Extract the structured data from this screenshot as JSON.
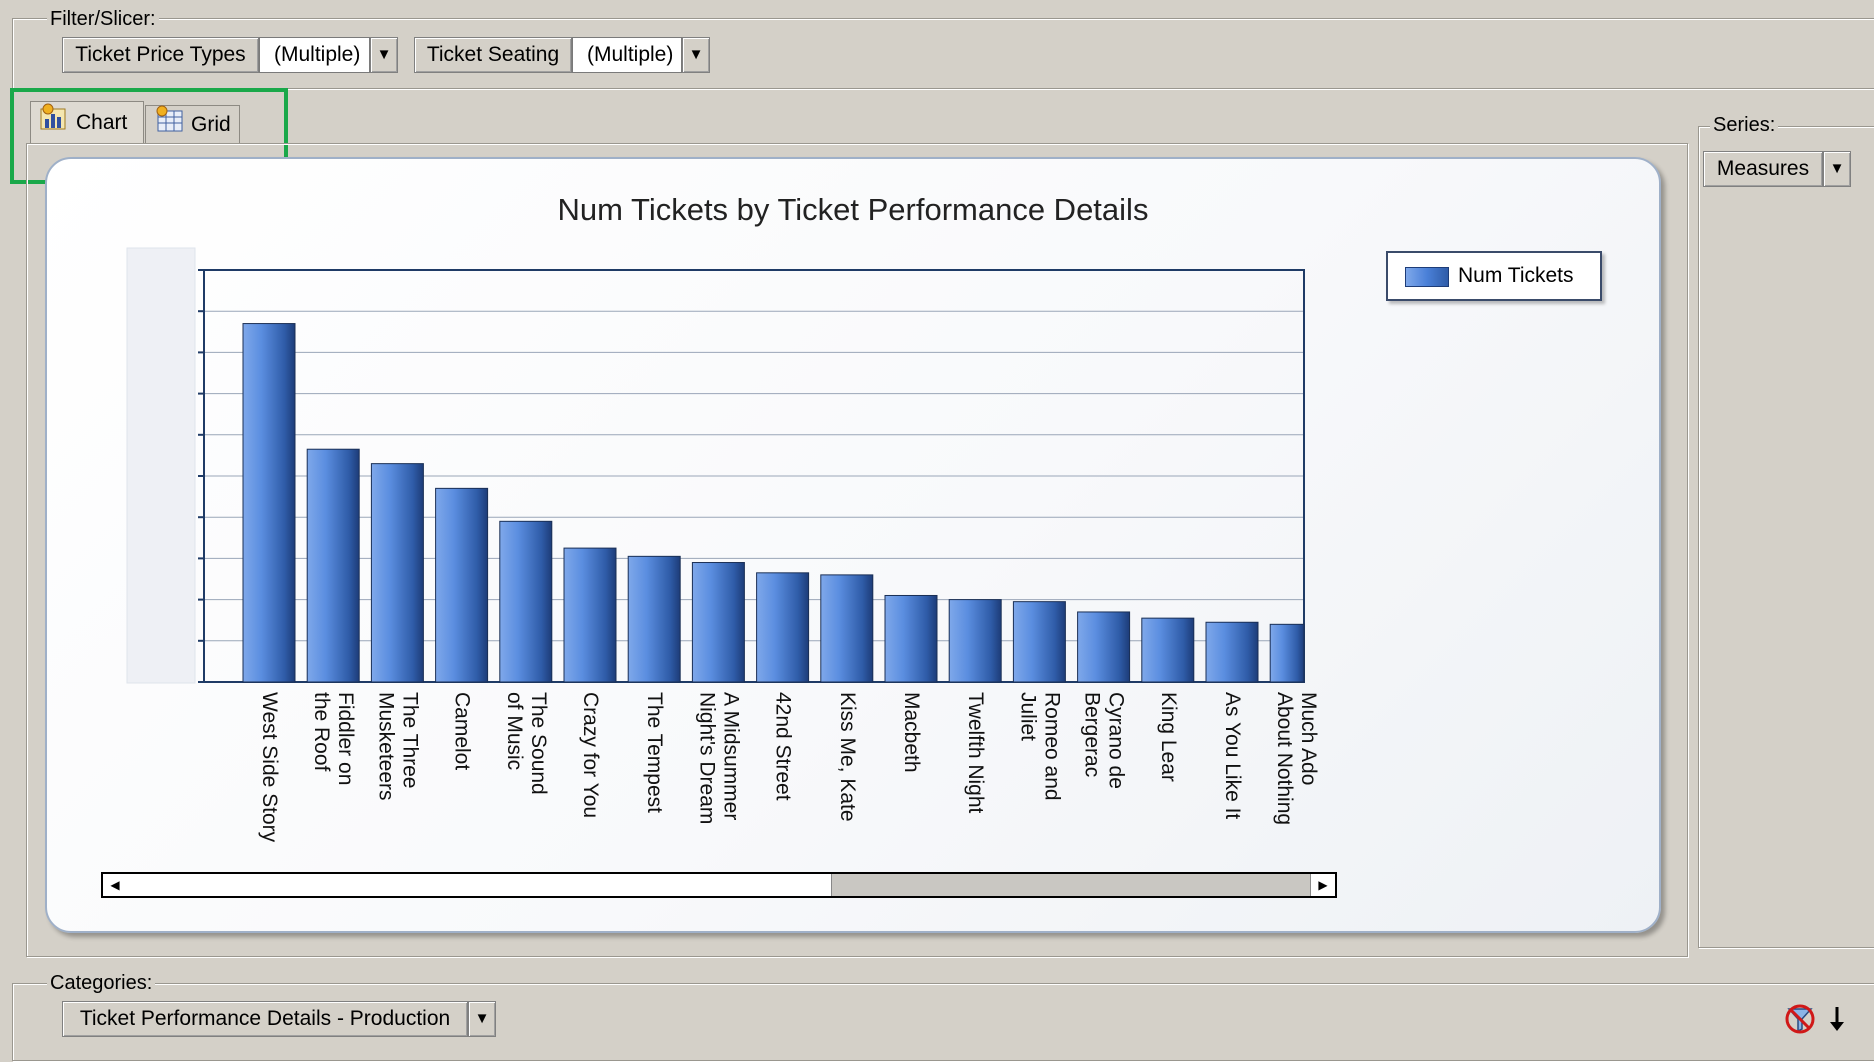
{
  "filter": {
    "label": "Filter/Slicer:",
    "items": [
      {
        "name": "Ticket Price Types",
        "value": "(Multiple)"
      },
      {
        "name": "Ticket Seating",
        "value": "(Multiple)"
      }
    ]
  },
  "tabs": [
    {
      "label": "Chart",
      "icon": "chart-icon",
      "active": true
    },
    {
      "label": "Grid",
      "icon": "grid-icon",
      "active": false
    }
  ],
  "series": {
    "label": "Series:",
    "button": "Measures"
  },
  "categories": {
    "label": "Categories:",
    "button": "Ticket Performance Details - Production"
  },
  "icons": {
    "dropdown": "dropdown-arrow-icon",
    "filter_off": "filter-off-icon",
    "sort": "sort-down-arrow-icon",
    "scroll_left": "scroll-left-icon",
    "scroll_right": "scroll-right-icon"
  },
  "colors": {
    "bar": "#4a80d8",
    "highlight": "#1aa84a",
    "card_border": "#9fb0c8"
  },
  "chart_data": {
    "type": "bar",
    "title": "Num Tickets by Ticket Performance Details",
    "legend": {
      "entry": "Num Tickets",
      "position": "right"
    },
    "grid": true,
    "ylim": [
      0,
      100
    ],
    "series": [
      {
        "name": "Num Tickets"
      }
    ],
    "bars": [
      {
        "l1": "West Side Story",
        "l2": "",
        "v": 87
      },
      {
        "l1": "Fiddler on",
        "l2": "the Roof",
        "v": 56.5
      },
      {
        "l1": "The Three",
        "l2": "Musketeers",
        "v": 53
      },
      {
        "l1": "Camelot",
        "l2": "",
        "v": 47
      },
      {
        "l1": "The Sound",
        "l2": "of Music",
        "v": 39
      },
      {
        "l1": "Crazy for You",
        "l2": "",
        "v": 32.5
      },
      {
        "l1": "The Tempest",
        "l2": "",
        "v": 30.5
      },
      {
        "l1": "A Midsummer",
        "l2": "Night's Dream",
        "v": 29
      },
      {
        "l1": "42nd Street",
        "l2": "",
        "v": 26.5
      },
      {
        "l1": "Kiss Me, Kate",
        "l2": "",
        "v": 26
      },
      {
        "l1": "Macbeth",
        "l2": "",
        "v": 21
      },
      {
        "l1": "Twelfth Night",
        "l2": "",
        "v": 20
      },
      {
        "l1": "Romeo and",
        "l2": "Juliet",
        "v": 19.5
      },
      {
        "l1": "Cyrano de",
        "l2": "Bergerac",
        "v": 17
      },
      {
        "l1": "King Lear",
        "l2": "",
        "v": 15.5
      },
      {
        "l1": "As You Like It",
        "l2": "",
        "v": 14.5
      },
      {
        "l1": "Much Ado",
        "l2": "About Nothing",
        "v": 14
      }
    ]
  }
}
